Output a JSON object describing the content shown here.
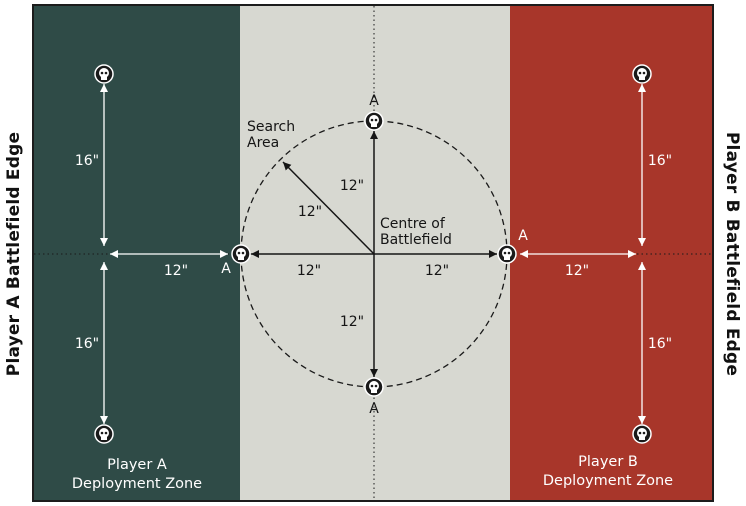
{
  "edges": {
    "player_a": "Player A Battlefield Edge",
    "player_b": "Player B Battlefield Edge"
  },
  "zones": {
    "player_a_line1": "Player A",
    "player_a_line2": "Deployment Zone",
    "player_b_line1": "Player B",
    "player_b_line2": "Deployment Zone"
  },
  "labels": {
    "search_area_line1": "Search",
    "search_area_line2": "Area",
    "centre_line1": "Centre of",
    "centre_line2": "Battlefield",
    "objective_marker": "A",
    "dist_16": "16\"",
    "dist_12": "12\""
  },
  "colors": {
    "player_a_zone": "#2f4b47",
    "no_mans_land": "#d7d8d1",
    "player_b_zone": "#a8362a"
  },
  "icons": {
    "marker": "skull-marker-icon"
  }
}
